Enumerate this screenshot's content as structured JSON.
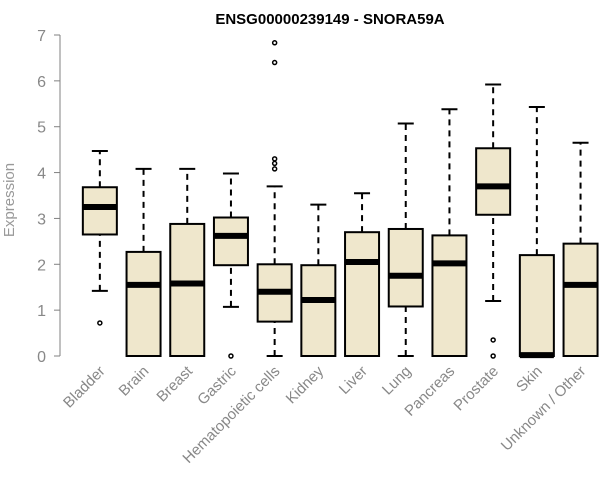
{
  "chart_data": {
    "type": "boxplot",
    "title": "ENSG00000239149 - SNORA59A",
    "xlabel": "",
    "ylabel": "Expression",
    "ylim": [
      0,
      7
    ],
    "yticks": [
      0,
      1,
      2,
      3,
      4,
      5,
      6,
      7
    ],
    "grid": false,
    "box_fill": "#efe7cc",
    "stroke_color": "#000000",
    "axis_color": "#808080",
    "categories": [
      "Bladder",
      "Brain",
      "Breast",
      "Gastric",
      "Hematopoietic cells",
      "Kidney",
      "Liver",
      "Lung",
      "Pancreas",
      "Prostate",
      "Skin",
      "Unknown / Other"
    ],
    "boxes": [
      {
        "whisker_low": 1.42,
        "q1": 2.65,
        "median": 3.25,
        "q3": 3.68,
        "whisker_high": 4.47,
        "outliers": [
          0.72
        ]
      },
      {
        "whisker_low": 0.0,
        "q1": 0.0,
        "median": 1.55,
        "q3": 2.27,
        "whisker_high": 4.08,
        "outliers": []
      },
      {
        "whisker_low": 0.0,
        "q1": 0.0,
        "median": 1.58,
        "q3": 2.88,
        "whisker_high": 4.08,
        "outliers": []
      },
      {
        "whisker_low": 1.07,
        "q1": 1.98,
        "median": 2.62,
        "q3": 3.02,
        "whisker_high": 3.98,
        "outliers": [
          0.0
        ]
      },
      {
        "whisker_low": 0.0,
        "q1": 0.75,
        "median": 1.4,
        "q3": 2.0,
        "whisker_high": 3.7,
        "outliers": [
          4.08,
          4.2,
          4.3,
          6.4,
          6.83
        ]
      },
      {
        "whisker_low": 0.0,
        "q1": 0.0,
        "median": 1.22,
        "q3": 1.98,
        "whisker_high": 3.3,
        "outliers": []
      },
      {
        "whisker_low": 0.0,
        "q1": 0.0,
        "median": 2.05,
        "q3": 2.7,
        "whisker_high": 3.55,
        "outliers": []
      },
      {
        "whisker_low": 0.0,
        "q1": 1.08,
        "median": 1.75,
        "q3": 2.77,
        "whisker_high": 5.07,
        "outliers": []
      },
      {
        "whisker_low": 0.0,
        "q1": 0.0,
        "median": 2.02,
        "q3": 2.63,
        "whisker_high": 5.38,
        "outliers": []
      },
      {
        "whisker_low": 1.2,
        "q1": 3.08,
        "median": 3.7,
        "q3": 4.53,
        "whisker_high": 5.92,
        "outliers": [
          0.0,
          0.35
        ]
      },
      {
        "whisker_low": 0.0,
        "q1": 0.0,
        "median": 0.02,
        "q3": 2.2,
        "whisker_high": 5.43,
        "outliers": []
      },
      {
        "whisker_low": 0.0,
        "q1": 0.0,
        "median": 1.55,
        "q3": 2.45,
        "whisker_high": 4.65,
        "outliers": []
      }
    ]
  }
}
